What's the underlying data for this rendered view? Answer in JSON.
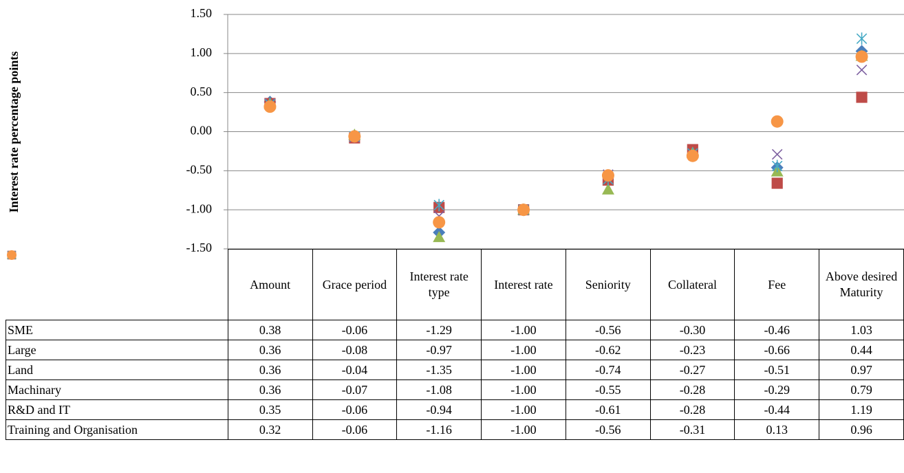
{
  "chart_data": {
    "type": "scatter",
    "y_axis_label": "Interest rate percentage points",
    "categories": [
      "Amount",
      "Grace period",
      "Interest rate type",
      "Interest rate",
      "Seniority",
      "Collateral",
      "Fee",
      "Above desired Maturity"
    ],
    "ylim": [
      -1.5,
      1.5
    ],
    "yticks": [
      {
        "value": 1.5,
        "label": "1.50"
      },
      {
        "value": 1,
        "label": "1.00"
      },
      {
        "value": 0.5,
        "label": "0.50"
      },
      {
        "value": 0,
        "label": "0.00"
      },
      {
        "value": -0.5,
        "label": "-0.50"
      },
      {
        "value": -1,
        "label": "-1.00"
      },
      {
        "value": -1.5,
        "label": "-1.50"
      }
    ],
    "grid": true,
    "series": [
      {
        "name": "SME",
        "color": "#4a7ebb",
        "marker": "diamond",
        "values": [
          0.38,
          -0.06,
          -1.29,
          -1,
          -0.56,
          -0.3,
          -0.46,
          1.03
        ],
        "value_labels": [
          "0.38",
          "-0.06",
          "-1.29",
          "-1.00",
          "-0.56",
          "-0.30",
          "-0.46",
          "1.03"
        ]
      },
      {
        "name": "Large",
        "color": "#be4b48",
        "marker": "square",
        "values": [
          0.36,
          -0.08,
          -0.97,
          -1,
          -0.62,
          -0.23,
          -0.66,
          0.44
        ],
        "value_labels": [
          "0.36",
          "-0.08",
          "-0.97",
          "-1.00",
          "-0.62",
          "-0.23",
          "-0.66",
          "0.44"
        ]
      },
      {
        "name": "Land",
        "color": "#98b954",
        "marker": "triangle",
        "values": [
          0.36,
          -0.04,
          -1.35,
          -1,
          -0.74,
          -0.27,
          -0.51,
          0.97
        ],
        "value_labels": [
          "0.36",
          "-0.04",
          "-1.35",
          "-1.00",
          "-0.74",
          "-0.27",
          "-0.51",
          "0.97"
        ]
      },
      {
        "name": "Machinary",
        "color": "#7d60a0",
        "marker": "x",
        "values": [
          0.36,
          -0.07,
          -1.08,
          -1,
          -0.55,
          -0.28,
          -0.29,
          0.79
        ],
        "value_labels": [
          "0.36",
          "-0.07",
          "-1.08",
          "-1.00",
          "-0.55",
          "-0.28",
          "-0.29",
          "0.79"
        ]
      },
      {
        "name": "R&D and IT",
        "color": "#46aac5",
        "marker": "star",
        "values": [
          0.35,
          -0.06,
          -0.94,
          -1,
          -0.61,
          -0.28,
          -0.44,
          1.19
        ],
        "value_labels": [
          "0.35",
          "-0.06",
          "-0.94",
          "-1.00",
          "-0.61",
          "-0.28",
          "-0.44",
          "1.19"
        ]
      },
      {
        "name": "Training and Organisation",
        "color": "#f79646",
        "marker": "circle",
        "values": [
          0.32,
          -0.06,
          -1.16,
          -1,
          -0.56,
          -0.31,
          0.13,
          0.96
        ],
        "value_labels": [
          "0.32",
          "-0.06",
          "-1.16",
          "-1.00",
          "-0.56",
          "-0.31",
          "0.13",
          "0.96"
        ]
      }
    ]
  }
}
